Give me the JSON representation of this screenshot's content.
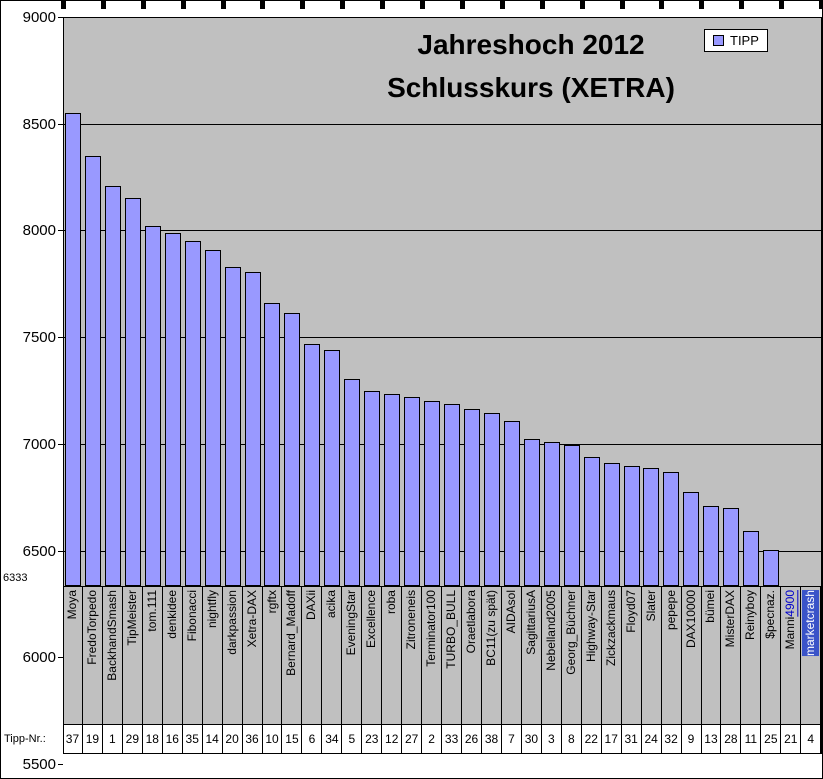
{
  "chart_data": {
    "type": "bar",
    "title_line1": "Jahreshoch 2012",
    "title_line2": "Schlusskurs (XETRA)",
    "legend_label": "TIPP",
    "row_label": "Tipp-Nr.:",
    "ylabel": "",
    "xlabel": "",
    "ylim": [
      5500,
      9000
    ],
    "yticks": [
      9000,
      8500,
      8000,
      7500,
      7000,
      6500,
      6000,
      5500
    ],
    "baseline": 6333,
    "baseline_label": "6333",
    "bar_color": "#9999FF",
    "plot_bg": "#C0C0C0",
    "link_color": "#0000CC",
    "selection_bg": "#3A53C8",
    "selection_fg": "#FFFFFF",
    "legend_position": "top-right",
    "grid": true,
    "categories": [
      {
        "name": "Moya",
        "tipp_nr": 37,
        "value": 8550
      },
      {
        "name": "FredoTorpedo",
        "tipp_nr": 19,
        "value": 8350
      },
      {
        "name": "BackhandSmash",
        "tipp_nr": 1,
        "value": 8210
      },
      {
        "name": "TipMeister",
        "tipp_nr": 29,
        "value": 8150
      },
      {
        "name": "tom.111",
        "tipp_nr": 18,
        "value": 8020
      },
      {
        "name": "denkidee",
        "tipp_nr": 16,
        "value": 7990
      },
      {
        "name": "Fibonacci",
        "tipp_nr": 35,
        "value": 7950
      },
      {
        "name": "nightfly",
        "tipp_nr": 14,
        "value": 7910
      },
      {
        "name": "darkpassion",
        "tipp_nr": 20,
        "value": 7830
      },
      {
        "name": "Xetra-DAX",
        "tipp_nr": 36,
        "value": 7805
      },
      {
        "name": "rgftx",
        "tipp_nr": 10,
        "value": 7660
      },
      {
        "name": "Bernard_Madoff",
        "tipp_nr": 15,
        "value": 7615
      },
      {
        "name": "DAXii",
        "tipp_nr": 6,
        "value": 7470
      },
      {
        "name": "acika",
        "tipp_nr": 34,
        "value": 7440
      },
      {
        "name": "EveningStar",
        "tipp_nr": 5,
        "value": 7305
      },
      {
        "name": "Excellence",
        "tipp_nr": 23,
        "value": 7250
      },
      {
        "name": "roba",
        "tipp_nr": 12,
        "value": 7235
      },
      {
        "name": "Zitroneneis",
        "tipp_nr": 27,
        "value": 7220
      },
      {
        "name": "Terminator100",
        "tipp_nr": 2,
        "value": 7200
      },
      {
        "name": "TURBO_BULL",
        "tipp_nr": 33,
        "value": 7185
      },
      {
        "name": "Oraetlabora",
        "tipp_nr": 26,
        "value": 7165
      },
      {
        "name": "BC11(zu spät)",
        "tipp_nr": 38,
        "value": 7145
      },
      {
        "name": "AIDAsol",
        "tipp_nr": 7,
        "value": 7105
      },
      {
        "name": "SagittariusA",
        "tipp_nr": 30,
        "value": 7025
      },
      {
        "name": "Nebelland2005",
        "tipp_nr": 3,
        "value": 7010
      },
      {
        "name": "Georg_Büchner",
        "tipp_nr": 8,
        "value": 6995
      },
      {
        "name": "Highway-Star",
        "tipp_nr": 22,
        "value": 6940
      },
      {
        "name": "Zickzackmaus",
        "tipp_nr": 17,
        "value": 6910
      },
      {
        "name": "Floyd07",
        "tipp_nr": 31,
        "value": 6895
      },
      {
        "name": "Slater",
        "tipp_nr": 24,
        "value": 6885
      },
      {
        "name": "pepepe",
        "tipp_nr": 32,
        "value": 6870
      },
      {
        "name": "DAX10000",
        "tipp_nr": 9,
        "value": 6775
      },
      {
        "name": "bümei",
        "tipp_nr": 13,
        "value": 6710
      },
      {
        "name": "MisterDAX",
        "tipp_nr": 28,
        "value": 6700
      },
      {
        "name": "Reinyboy",
        "tipp_nr": 11,
        "value": 6590
      },
      {
        "name": "$pecnaz.",
        "tipp_nr": 25,
        "value": 6505
      },
      {
        "name": "Manni4900",
        "tipp_nr": 21,
        "value": null,
        "style": "link",
        "link_prefix": "Manni",
        "link_suffix": "4900"
      },
      {
        "name": "marketcrash",
        "tipp_nr": 4,
        "value": null,
        "style": "selected"
      }
    ]
  }
}
